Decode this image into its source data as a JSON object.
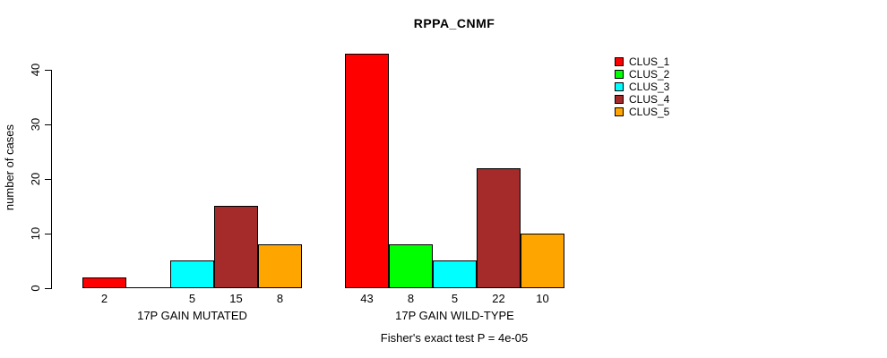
{
  "chart_data": {
    "type": "bar",
    "title": "RPPA_CNMF",
    "ylabel": "number of cases",
    "xlabel": "",
    "ylim": [
      0,
      43
    ],
    "yticks": [
      0,
      10,
      20,
      30,
      40
    ],
    "grid": false,
    "legend_position": "right-of-plot-top",
    "categories": [
      "17P GAIN MUTATED",
      "17P GAIN WILD-TYPE"
    ],
    "series": [
      {
        "name": "CLUS_1",
        "color": "#FF0000",
        "values": [
          2,
          43
        ]
      },
      {
        "name": "CLUS_2",
        "color": "#00FF00",
        "values": [
          0,
          8
        ]
      },
      {
        "name": "CLUS_3",
        "color": "#00FFFF",
        "values": [
          5,
          5
        ]
      },
      {
        "name": "CLUS_4",
        "color": "#A52A2A",
        "values": [
          15,
          22
        ]
      },
      {
        "name": "CLUS_5",
        "color": "#FFA500",
        "values": [
          8,
          10
        ]
      }
    ],
    "bar_value_labels": [
      [
        "2",
        "",
        "5",
        "15",
        "8"
      ],
      [
        "43",
        "8",
        "5",
        "22",
        "10"
      ]
    ],
    "annotation": "Fisher's exact test P = 4e-05"
  }
}
